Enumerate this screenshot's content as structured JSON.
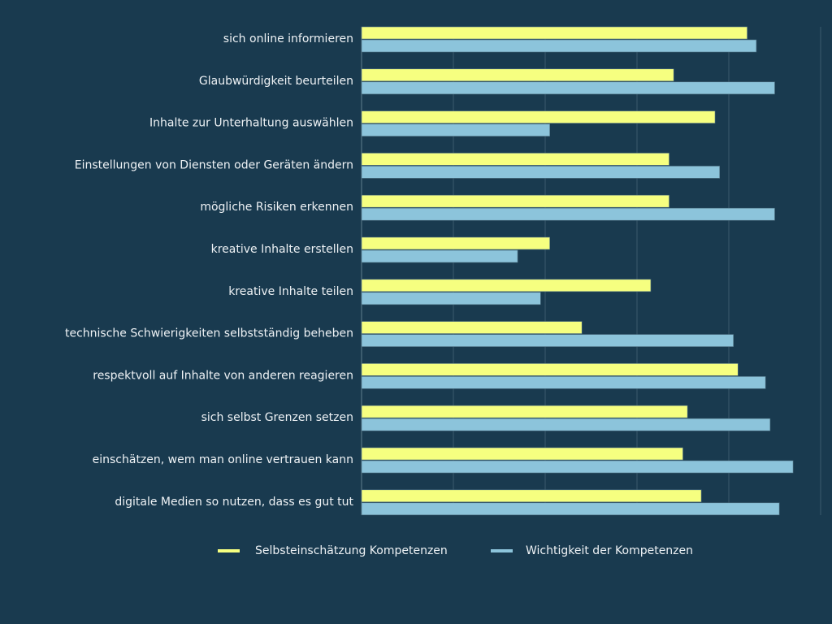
{
  "chart_data": {
    "type": "bar",
    "orientation": "horizontal",
    "title": "",
    "xlabel": "",
    "ylabel": "",
    "xlim": [
      0,
      100
    ],
    "grid": true,
    "legend_placement": "bottom",
    "categories": [
      "sich online informieren",
      "Glaubwürdigkeit beurteilen",
      "Inhalte zur Unterhaltung auswählen",
      "Einstellungen von Diensten oder Geräten ändern",
      "mögliche Risiken erkennen",
      "kreative Inhalte erstellen",
      "kreative Inhalte teilen",
      "technische Schwierigkeiten selbstständig beheben",
      "respektvoll auf Inhalte von anderen reagieren",
      "sich selbst Grenzen setzen",
      "einschätzen, wem man online vertrauen kann",
      "digitale Medien so nutzen, dass es gut tut"
    ],
    "series": [
      {
        "name": "Selbsteinschätzung Kompetenzen",
        "color": "#f6ff80",
        "values": [
          84,
          68,
          77,
          67,
          67,
          41,
          63,
          48,
          82,
          71,
          70,
          74
        ]
      },
      {
        "name": "Wichtigkeit der Kompetenzen",
        "color": "#8cc4db",
        "values": [
          86,
          90,
          41,
          78,
          90,
          34,
          39,
          81,
          88,
          89,
          94,
          91
        ]
      }
    ]
  },
  "colors": {
    "background": "#193a4f",
    "grid": "#3a5a6d"
  }
}
